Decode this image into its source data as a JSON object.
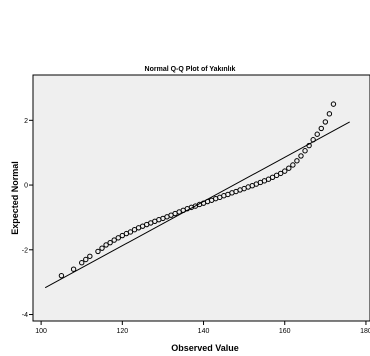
{
  "chart_data": {
    "type": "scatter",
    "title": "Normal Q-Q Plot of Yakınlık",
    "xlabel": "Observed Value",
    "ylabel": "Expected Normal",
    "xlim": [
      98,
      181
    ],
    "ylim": [
      -4.2,
      3.4
    ],
    "x_ticks": [
      "100",
      "120",
      "140",
      "160",
      "180"
    ],
    "y_ticks": [
      "2",
      "0",
      "-2",
      "-4"
    ],
    "x_tick_values": [
      100,
      120,
      140,
      160,
      180
    ],
    "y_tick_values": [
      2,
      0,
      -2,
      -4
    ],
    "grid": false,
    "background": "#efefef",
    "reference_line": {
      "x": [
        101,
        176
      ],
      "y": [
        -3.17,
        1.95
      ]
    },
    "series": [
      {
        "points": [
          [
            105,
            -2.8
          ],
          [
            108,
            -2.6
          ],
          [
            110,
            -2.4
          ],
          [
            111,
            -2.3
          ],
          [
            112,
            -2.2
          ],
          [
            114,
            -2.05
          ],
          [
            115,
            -1.95
          ],
          [
            116,
            -1.85
          ],
          [
            117,
            -1.78
          ],
          [
            118,
            -1.7
          ],
          [
            119,
            -1.63
          ],
          [
            120,
            -1.56
          ],
          [
            121,
            -1.5
          ],
          [
            122,
            -1.45
          ],
          [
            123,
            -1.38
          ],
          [
            124,
            -1.32
          ],
          [
            125,
            -1.27
          ],
          [
            126,
            -1.22
          ],
          [
            127,
            -1.17
          ],
          [
            128,
            -1.12
          ],
          [
            129,
            -1.07
          ],
          [
            130,
            -1.03
          ],
          [
            131,
            -0.98
          ],
          [
            132,
            -0.93
          ],
          [
            133,
            -0.88
          ],
          [
            134,
            -0.83
          ],
          [
            135,
            -0.78
          ],
          [
            136,
            -0.73
          ],
          [
            137,
            -0.69
          ],
          [
            138,
            -0.65
          ],
          [
            139,
            -0.6
          ],
          [
            140,
            -0.56
          ],
          [
            141,
            -0.51
          ],
          [
            142,
            -0.47
          ],
          [
            143,
            -0.42
          ],
          [
            144,
            -0.38
          ],
          [
            145,
            -0.33
          ],
          [
            146,
            -0.29
          ],
          [
            147,
            -0.24
          ],
          [
            148,
            -0.2
          ],
          [
            149,
            -0.15
          ],
          [
            150,
            -0.11
          ],
          [
            151,
            -0.06
          ],
          [
            152,
            -0.02
          ],
          [
            153,
            0.03
          ],
          [
            154,
            0.08
          ],
          [
            155,
            0.13
          ],
          [
            156,
            0.18
          ],
          [
            157,
            0.24
          ],
          [
            158,
            0.3
          ],
          [
            159,
            0.36
          ],
          [
            160,
            0.43
          ],
          [
            161,
            0.52
          ],
          [
            162,
            0.62
          ],
          [
            163,
            0.75
          ],
          [
            164,
            0.9
          ],
          [
            165,
            1.06
          ],
          [
            166,
            1.22
          ],
          [
            167,
            1.4
          ],
          [
            168,
            1.57
          ],
          [
            169,
            1.75
          ],
          [
            170,
            1.95
          ],
          [
            171,
            2.2
          ],
          [
            172,
            2.5
          ]
        ]
      }
    ]
  }
}
